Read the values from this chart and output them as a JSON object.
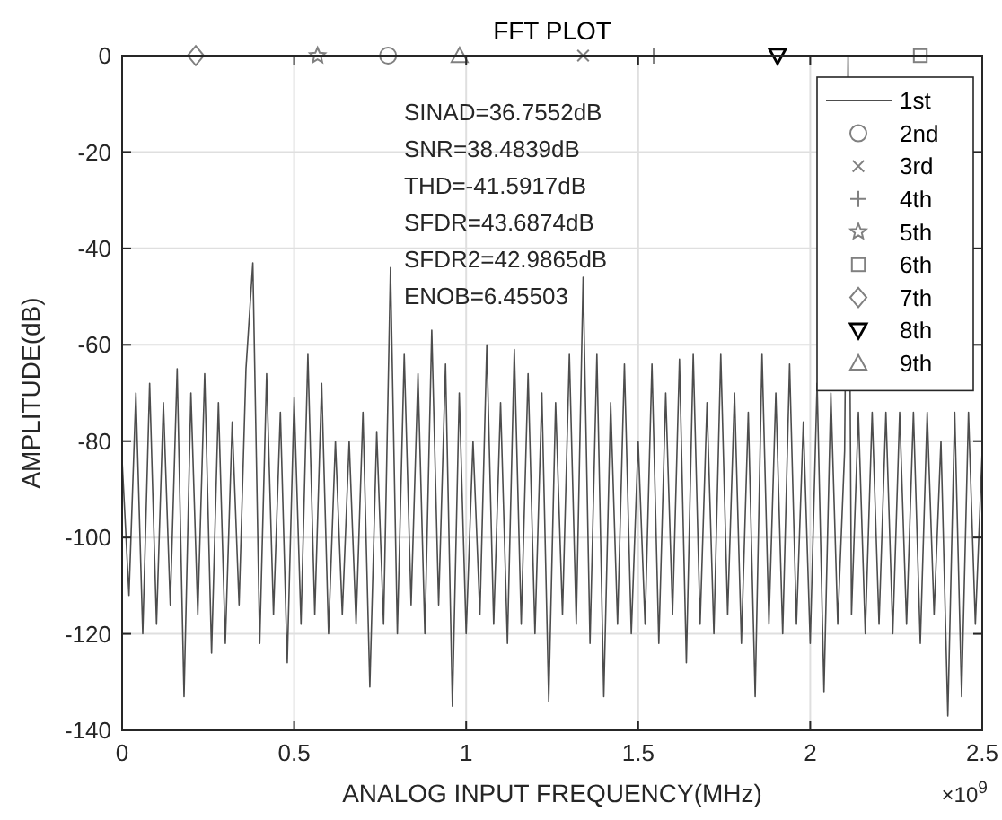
{
  "chart_data": {
    "type": "line",
    "title": "FFT PLOT",
    "xlabel": "ANALOG INPUT FREQUENCY(MHz)",
    "ylabel": "AMPLITUDE(dB)",
    "xlim": [
      0,
      2.5
    ],
    "xticks": [
      0,
      0.5,
      1,
      1.5,
      2,
      2.5
    ],
    "ylim": [
      -140,
      0
    ],
    "yticks": [
      -140,
      -120,
      -100,
      -80,
      -60,
      -40,
      -20,
      0
    ],
    "grid": true,
    "legend": "top right",
    "annotations": [
      "SINAD=36.7552dB",
      "SNR=38.4839dB",
      "THD=-41.5917dB",
      "SFDR=43.6874dB",
      "SFDR2=42.9865dB",
      "ENOB=6.45503",
      "×10$^{9}$"
    ],
    "series": [
      {
        "name": "1st",
        "color": "#4d4d4d",
        "marker": "none",
        "x": [
          0,
          0.02,
          0.04,
          0.06,
          0.08,
          0.1,
          0.12,
          0.14,
          0.16,
          0.18,
          0.2,
          0.22,
          0.24,
          0.26,
          0.28,
          0.3,
          0.32,
          0.34,
          0.36,
          0.38,
          0.4,
          0.42,
          0.44,
          0.46,
          0.48,
          0.5,
          0.52,
          0.54,
          0.56,
          0.58,
          0.6,
          0.62,
          0.64,
          0.66,
          0.68,
          0.7,
          0.72,
          0.74,
          0.76,
          0.78,
          0.8,
          0.82,
          0.84,
          0.86,
          0.88,
          0.9,
          0.92,
          0.94,
          0.96,
          0.98,
          1,
          1.02,
          1.04,
          1.06,
          1.08,
          1.1,
          1.12,
          1.14,
          1.16,
          1.18,
          1.2,
          1.22,
          1.24,
          1.26,
          1.28,
          1.3,
          1.32,
          1.34,
          1.36,
          1.38,
          1.4,
          1.42,
          1.44,
          1.46,
          1.48,
          1.5,
          1.52,
          1.54,
          1.56,
          1.58,
          1.6,
          1.62,
          1.64,
          1.66,
          1.68,
          1.7,
          1.72,
          1.74,
          1.76,
          1.78,
          1.8,
          1.82,
          1.84,
          1.86,
          1.88,
          1.9,
          1.92,
          1.94,
          1.96,
          1.98,
          2,
          2.02,
          2.04,
          2.06,
          2.08,
          2.1,
          2.11,
          2.12,
          2.14,
          2.16,
          2.18,
          2.2,
          2.22,
          2.24,
          2.26,
          2.28,
          2.3,
          2.32,
          2.34,
          2.36,
          2.38,
          2.4,
          2.42,
          2.44,
          2.46,
          2.48,
          2.5
        ],
        "values": [
          -84,
          -112,
          -70,
          -120,
          -68,
          -118,
          -72,
          -114,
          -65,
          -133,
          -70,
          -116,
          -66,
          -124,
          -72,
          -122,
          -76,
          -114,
          -65,
          -43,
          -122,
          -66,
          -116,
          -74,
          -126,
          -71,
          -118,
          -62,
          -116,
          -68,
          -120,
          -80,
          -116,
          -80,
          -118,
          -74,
          -131,
          -78,
          -118,
          -44,
          -120,
          -62,
          -114,
          -66,
          -120,
          -57,
          -114,
          -64,
          -135,
          -70,
          -120,
          -80,
          -116,
          -60,
          -118,
          -72,
          -122,
          -61,
          -118,
          -66,
          -120,
          -70,
          -134,
          -72,
          -116,
          -62,
          -118,
          -46,
          -122,
          -62,
          -133,
          -72,
          -118,
          -64,
          -120,
          -80,
          -118,
          -64,
          -122,
          -70,
          -116,
          -63,
          -126,
          -62,
          -118,
          -72,
          -120,
          -62,
          -116,
          -70,
          -122,
          -74,
          -133,
          -62,
          -118,
          -70,
          -120,
          -64,
          -118,
          -76,
          -122,
          -68,
          -132,
          -70,
          -118,
          -82,
          0,
          -116,
          -74,
          -120,
          -74,
          -118,
          -74,
          -120,
          -74,
          -118,
          -74,
          -122,
          -74,
          -116,
          -80,
          -137,
          -74,
          -133,
          -74,
          -118,
          -82
        ]
      },
      {
        "name": "2nd",
        "type": "scatter",
        "color": "#808080",
        "marker": "circle",
        "x": [
          0.773
        ],
        "values": [
          0
        ]
      },
      {
        "name": "3rd",
        "type": "scatter",
        "color": "#808080",
        "marker": "x",
        "x": [
          1.34
        ],
        "values": [
          0
        ]
      },
      {
        "name": "4th",
        "type": "scatter",
        "color": "#808080",
        "marker": "plus",
        "x": [
          1.545
        ],
        "values": [
          0
        ]
      },
      {
        "name": "5th",
        "type": "scatter",
        "color": "#808080",
        "marker": "star",
        "x": [
          0.568
        ],
        "values": [
          0
        ]
      },
      {
        "name": "6th",
        "type": "scatter",
        "color": "#808080",
        "marker": "square",
        "x": [
          2.32
        ],
        "values": [
          0
        ]
      },
      {
        "name": "7th",
        "type": "scatter",
        "color": "#808080",
        "marker": "diamond",
        "x": [
          0.214
        ],
        "values": [
          0
        ]
      },
      {
        "name": "8th",
        "type": "scatter",
        "color": "#000000",
        "marker": "triangle-down",
        "x": [
          1.905
        ],
        "values": [
          0
        ]
      },
      {
        "name": "9th",
        "type": "scatter",
        "color": "#808080",
        "marker": "triangle",
        "x": [
          0.981
        ],
        "values": [
          0
        ]
      }
    ]
  }
}
